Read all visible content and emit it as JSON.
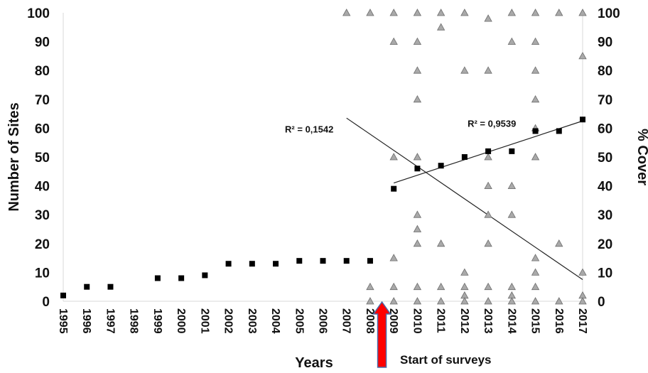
{
  "chart_data": {
    "type": "scatter",
    "title": "",
    "xlabel": "Years",
    "ylabel_left": "Number of Sites",
    "ylabel_right": "% Cover",
    "x_ticks": [
      "1995",
      "1996",
      "1997",
      "1998",
      "1999",
      "2000",
      "2001",
      "2002",
      "2003",
      "2004",
      "2005",
      "2006",
      "2007",
      "2008",
      "2009",
      "2010",
      "2011",
      "2012",
      "2013",
      "2014",
      "2015",
      "2016",
      "2017"
    ],
    "y_ticks": [
      "0",
      "10",
      "20",
      "30",
      "40",
      "50",
      "60",
      "70",
      "80",
      "90",
      "100"
    ],
    "xlim": [
      1995,
      2017
    ],
    "ylim": [
      0,
      100
    ],
    "y2lim": [
      0,
      100
    ],
    "grid": false,
    "sites_color": "#000000",
    "cover_color": "#a9a9a9",
    "series": [
      {
        "axis": "left",
        "marker": "square",
        "points": [
          [
            1995,
            2
          ],
          [
            1996,
            5
          ],
          [
            1997,
            5
          ],
          [
            1999,
            8
          ],
          [
            2000,
            8
          ],
          [
            2001,
            9
          ],
          [
            2002,
            13
          ],
          [
            2003,
            13
          ],
          [
            2004,
            13
          ],
          [
            2005,
            14
          ],
          [
            2006,
            14
          ],
          [
            2007,
            14
          ],
          [
            2008,
            14
          ],
          [
            2009,
            39
          ],
          [
            2010,
            46
          ],
          [
            2011,
            47
          ],
          [
            2012,
            50
          ],
          [
            2013,
            52
          ],
          [
            2014,
            52
          ],
          [
            2015,
            59
          ],
          [
            2016,
            59
          ],
          [
            2017,
            63
          ]
        ]
      },
      {
        "axis": "right",
        "marker": "triangle",
        "points": [
          [
            2007,
            100
          ],
          [
            2008,
            100
          ],
          [
            2008,
            5
          ],
          [
            2008,
            0
          ],
          [
            2009,
            100
          ],
          [
            2009,
            90
          ],
          [
            2009,
            50
          ],
          [
            2009,
            15
          ],
          [
            2009,
            5
          ],
          [
            2009,
            0
          ],
          [
            2010,
            100
          ],
          [
            2010,
            90
          ],
          [
            2010,
            80
          ],
          [
            2010,
            70
          ],
          [
            2010,
            50
          ],
          [
            2010,
            30
          ],
          [
            2010,
            25
          ],
          [
            2010,
            20
          ],
          [
            2010,
            5
          ],
          [
            2010,
            0
          ],
          [
            2011,
            100
          ],
          [
            2011,
            95
          ],
          [
            2011,
            20
          ],
          [
            2011,
            5
          ],
          [
            2011,
            0
          ],
          [
            2012,
            100
          ],
          [
            2012,
            80
          ],
          [
            2012,
            10
          ],
          [
            2012,
            5
          ],
          [
            2012,
            2
          ],
          [
            2012,
            0
          ],
          [
            2013,
            98
          ],
          [
            2013,
            80
          ],
          [
            2013,
            50
          ],
          [
            2013,
            40
          ],
          [
            2013,
            30
          ],
          [
            2013,
            20
          ],
          [
            2013,
            5
          ],
          [
            2013,
            0
          ],
          [
            2014,
            100
          ],
          [
            2014,
            90
          ],
          [
            2014,
            40
          ],
          [
            2014,
            30
          ],
          [
            2014,
            5
          ],
          [
            2014,
            2
          ],
          [
            2014,
            0
          ],
          [
            2015,
            100
          ],
          [
            2015,
            90
          ],
          [
            2015,
            80
          ],
          [
            2015,
            70
          ],
          [
            2015,
            60
          ],
          [
            2015,
            50
          ],
          [
            2015,
            15
          ],
          [
            2015,
            10
          ],
          [
            2015,
            5
          ],
          [
            2015,
            0
          ],
          [
            2016,
            100
          ],
          [
            2016,
            20
          ],
          [
            2016,
            0
          ],
          [
            2017,
            100
          ],
          [
            2017,
            85
          ],
          [
            2017,
            10
          ],
          [
            2017,
            2
          ],
          [
            2017,
            0
          ]
        ]
      }
    ],
    "trendlines": [
      {
        "axis": "left",
        "label": "R² = 0,9539",
        "from": [
          2009,
          41
        ],
        "to": [
          2017,
          62.5
        ]
      },
      {
        "axis": "right",
        "label": "R² = 0,1542",
        "from": [
          2007,
          63.5
        ],
        "to": [
          2017,
          7.5
        ]
      }
    ],
    "annotation": {
      "text": "Start of surveys",
      "arrow_x": 2008.5,
      "arrow_color": "#ff0000"
    }
  }
}
